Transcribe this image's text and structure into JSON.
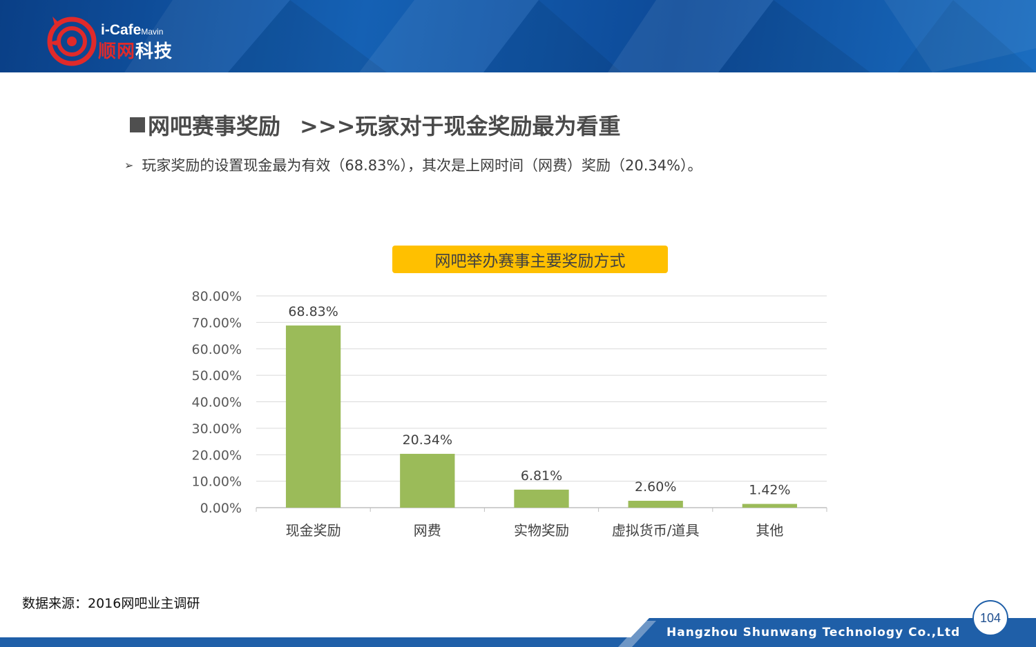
{
  "header": {
    "brand_en": "i-Cafe",
    "brand_en_small": "Mavin",
    "brand_cn_red": "顺网",
    "brand_cn_white": "科技"
  },
  "slide": {
    "title": "网吧赛事奖励",
    "subtitle": ">>>玩家对于现金奖励最为看重",
    "bullet": "玩家奖励的设置现金最为有效（68.83%），其次是上网时间（网费）奖励（20.34%）。"
  },
  "chart_data": {
    "type": "bar",
    "title": "网吧举办赛事主要奖励方式",
    "categories": [
      "现金奖励",
      "网费",
      "实物奖励",
      "虚拟货币/道具",
      "其他"
    ],
    "values": [
      68.83,
      20.34,
      6.81,
      2.6,
      1.42
    ],
    "data_labels": [
      "68.83%",
      "20.34%",
      "6.81%",
      "2.60%",
      "1.42%"
    ],
    "ylim": [
      0,
      80
    ],
    "yticks": [
      "0.00%",
      "10.00%",
      "20.00%",
      "30.00%",
      "40.00%",
      "50.00%",
      "60.00%",
      "70.00%",
      "80.00%"
    ],
    "bar_color": "#9bbb59",
    "grid": true,
    "legend": "none",
    "xlabel": "",
    "ylabel": ""
  },
  "source": "数据来源：2016网吧业主调研",
  "footer": {
    "company": "Hangzhou Shunwang Technology Co.,Ltd",
    "page": "104"
  }
}
